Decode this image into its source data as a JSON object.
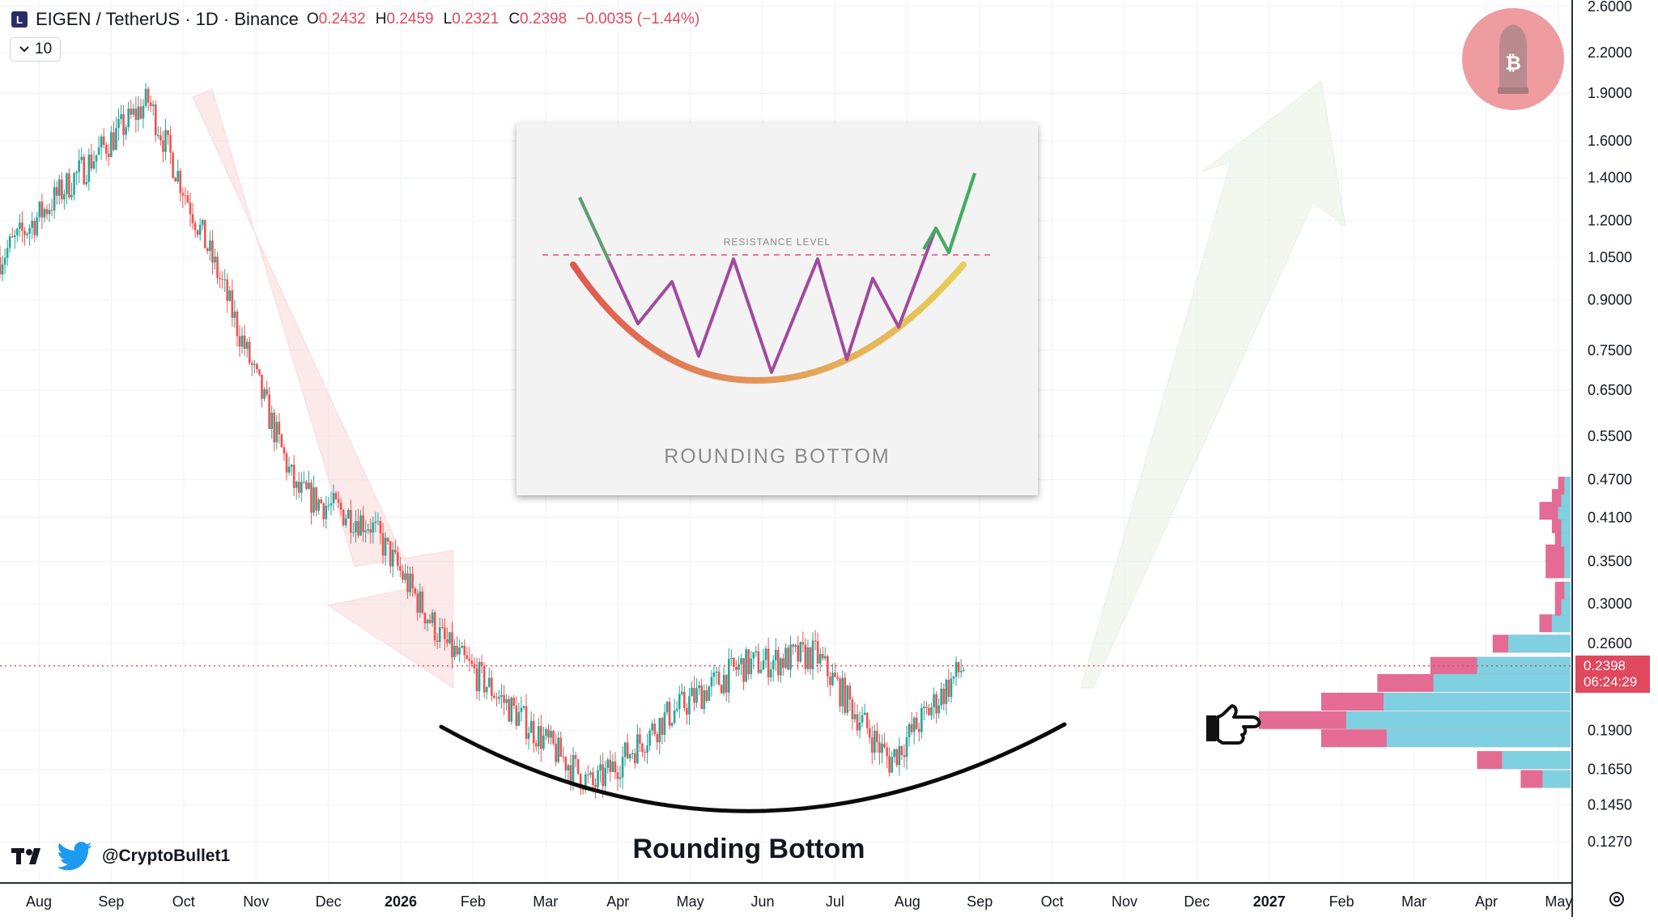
{
  "header": {
    "symbol": "EIGEN / TetherUS · 1D · Binance",
    "ohlc": [
      {
        "k": "O",
        "v": "0.2432"
      },
      {
        "k": "H",
        "v": "0.2459"
      },
      {
        "k": "L",
        "v": "0.2321"
      },
      {
        "k": "C",
        "v": "0.2398"
      }
    ],
    "change": "−0.0035 (−1.44%)"
  },
  "interval_button": {
    "label": "10"
  },
  "watermark": {
    "handle": "@CryptoBullet1"
  },
  "price_tag": {
    "price": "0.2398",
    "countdown": "06:24:29"
  },
  "inset": {
    "title": "ROUNDING BOTTOM",
    "resistance_label": "RESISTANCE LEVEL"
  },
  "annotation": {
    "caption": "Rounding Bottom"
  },
  "colors": {
    "up": "#26a69a",
    "down": "#ef5350",
    "accent_red": "#e0485d",
    "volume_pink": "#e46b93",
    "volume_blue": "#7fd0e0",
    "bitcoin_badge": "#ee9ca0",
    "grid": "#f0f3fa"
  },
  "icons": [
    "tradingview-logo-icon",
    "twitter-bird-icon",
    "bitcoin-bullet-icon",
    "pointing-hand-icon",
    "chevron-down-icon",
    "scale-settings-icon"
  ],
  "chart_data": {
    "type": "candlestick",
    "scale": "log",
    "y_ticks": [
      2.6,
      2.2,
      1.9,
      1.6,
      1.4,
      1.2,
      1.05,
      0.9,
      0.75,
      0.65,
      0.55,
      0.47,
      0.41,
      0.35,
      0.3,
      0.26,
      0.19,
      0.165,
      0.145,
      0.127
    ],
    "y_tick_labels": [
      "2.6000",
      "2.2000",
      "1.9000",
      "1.6000",
      "1.4000",
      "1.2000",
      "1.0500",
      "0.9000",
      "0.7500",
      "0.6500",
      "0.5500",
      "0.4700",
      "0.4100",
      "0.3500",
      "0.3000",
      "0.2600",
      "0.1900",
      "0.1650",
      "0.1450",
      "0.1270"
    ],
    "x_labels": [
      "Aug",
      "Sep",
      "Oct",
      "Nov",
      "Dec",
      "2026",
      "Feb",
      "Mar",
      "Apr",
      "May",
      "Jun",
      "Jul",
      "Aug",
      "Sep",
      "Oct",
      "Nov",
      "Dec",
      "2027",
      "Feb",
      "Mar",
      "Apr",
      "May"
    ],
    "x_label_bold": [
      false,
      false,
      false,
      false,
      false,
      true,
      false,
      false,
      false,
      false,
      false,
      false,
      false,
      false,
      false,
      false,
      false,
      true,
      false,
      false,
      false,
      false
    ],
    "price_path_months": [
      "Aug",
      "Sep",
      "Oct",
      "Nov",
      "Dec",
      "2026",
      "Feb",
      "Mar",
      "Apr",
      "May",
      "Jun",
      "Jul",
      "Aug",
      "Sep"
    ],
    "price_path_closes": [
      1.05,
      1.4,
      1.85,
      0.95,
      0.45,
      0.4,
      0.26,
      0.2,
      0.155,
      0.2,
      0.24,
      0.25,
      0.17,
      0.2398
    ],
    "last_price": 0.2398,
    "volume_profile": [
      {
        "price": 0.2598,
        "sell": 0.25,
        "buy": 0.2
      },
      {
        "price": 0.2398,
        "sell": 0.45,
        "buy": 0.3
      },
      {
        "price": 0.2254,
        "sell": 0.62,
        "buy": 0.44
      },
      {
        "price": 0.2107,
        "sell": 0.8,
        "buy": 0.6
      },
      {
        "price": 0.1971,
        "sell": 1.0,
        "buy": 0.72
      },
      {
        "price": 0.1846,
        "sell": 0.8,
        "buy": 0.59
      },
      {
        "price": 0.1706,
        "sell": 0.3,
        "buy": 0.22
      },
      {
        "price": 0.1593,
        "sell": 0.16,
        "buy": 0.09
      },
      {
        "price": 0.2797,
        "sell": 0.1,
        "buy": 0.06
      },
      {
        "price": 0.297,
        "sell": 0.05,
        "buy": 0.03
      },
      {
        "price": 0.3147,
        "sell": 0.05,
        "buy": 0.02
      },
      {
        "price": 0.34,
        "sell": 0.08,
        "buy": 0.02
      },
      {
        "price": 0.36,
        "sell": 0.08,
        "buy": 0.02
      },
      {
        "price": 0.381,
        "sell": 0.05,
        "buy": 0.03
      },
      {
        "price": 0.4,
        "sell": 0.06,
        "buy": 0.03
      },
      {
        "price": 0.42,
        "sell": 0.1,
        "buy": 0.04
      },
      {
        "price": 0.44,
        "sell": 0.06,
        "buy": 0.03
      },
      {
        "price": 0.46,
        "sell": 0.04,
        "buy": 0.02
      }
    ]
  }
}
